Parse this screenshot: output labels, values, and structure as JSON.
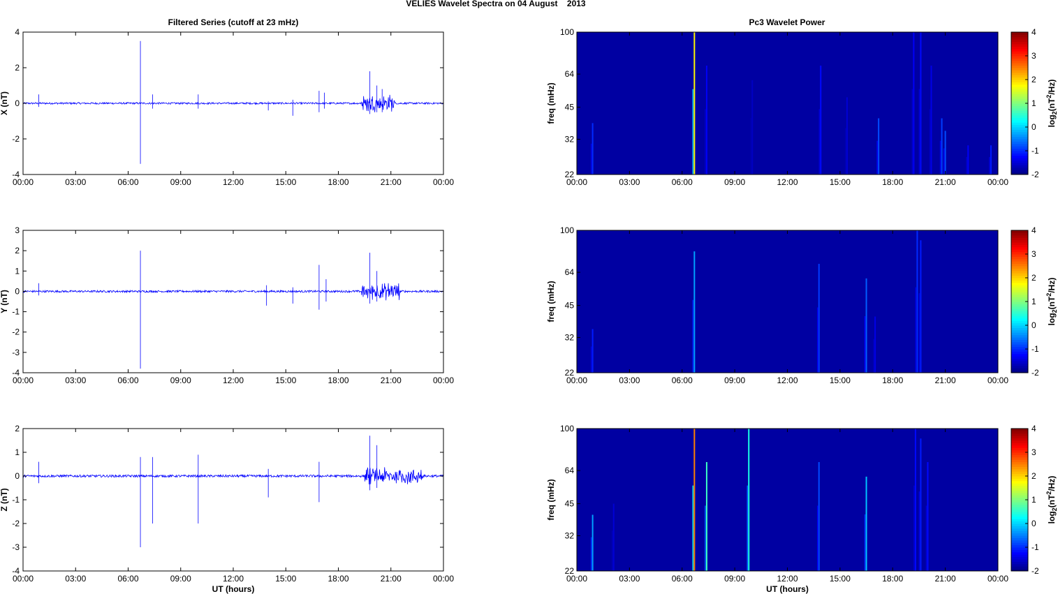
{
  "figure_title": "VELIES Wavelet Spectra on 04 August    2013",
  "left_title": "Filtered Series (cutoff at 23 mHz)",
  "right_title": "Pc3 Wavelet Power",
  "colors": {
    "trace": "#0000ff",
    "frame": "#000000",
    "background": "#ffffff"
  },
  "chart_data": [
    {
      "type": "line",
      "title": "Filtered Series (cutoff at 23 mHz)",
      "ylabel": "X (nT)",
      "xlabel": "",
      "xlim_hours": [
        0,
        24
      ],
      "ylim": [
        -4,
        4
      ],
      "yticks": [
        -4,
        -2,
        0,
        2,
        4
      ],
      "xtick_labels": [
        "00:00",
        "03:00",
        "06:00",
        "09:00",
        "12:00",
        "15:00",
        "18:00",
        "21:00",
        "00:00"
      ],
      "noise_amplitude": 0.05,
      "spikes": [
        [
          0.9,
          0.5,
          -0.2
        ],
        [
          6.7,
          3.5,
          -3.4
        ],
        [
          7.4,
          0.5,
          -0.3
        ],
        [
          10.0,
          0.5,
          -0.3
        ],
        [
          14.0,
          0.1,
          -0.4
        ],
        [
          15.4,
          0.2,
          -0.7
        ],
        [
          16.9,
          0.7,
          -0.5
        ],
        [
          17.2,
          0.6,
          -0.3
        ],
        [
          19.8,
          1.8,
          -0.6
        ],
        [
          20.2,
          1.0,
          -0.5
        ],
        [
          20.5,
          0.8,
          -0.5
        ]
      ],
      "activity_hours": [
        19.3,
        21.2
      ],
      "activity_amplitude": 0.6
    },
    {
      "type": "line",
      "ylabel": "Y (nT)",
      "xlabel": "",
      "xlim_hours": [
        0,
        24
      ],
      "ylim": [
        -4,
        3
      ],
      "yticks": [
        -4,
        -3,
        -2,
        -1,
        0,
        1,
        2,
        3
      ],
      "xtick_labels": [
        "00:00",
        "03:00",
        "06:00",
        "09:00",
        "12:00",
        "15:00",
        "18:00",
        "21:00",
        "00:00"
      ],
      "noise_amplitude": 0.05,
      "spikes": [
        [
          0.9,
          0.4,
          -0.2
        ],
        [
          6.7,
          2.0,
          -3.8
        ],
        [
          13.9,
          0.3,
          -0.7
        ],
        [
          15.4,
          0.2,
          -0.6
        ],
        [
          16.9,
          1.3,
          -0.9
        ],
        [
          17.3,
          0.6,
          -0.5
        ],
        [
          19.8,
          1.9,
          -0.6
        ],
        [
          20.2,
          1.0,
          -0.5
        ]
      ],
      "activity_hours": [
        19.3,
        21.5
      ],
      "activity_amplitude": 0.5
    },
    {
      "type": "line",
      "ylabel": "Z (nT)",
      "xlabel": "UT (hours)",
      "xlim_hours": [
        0,
        24
      ],
      "ylim": [
        -4,
        2
      ],
      "yticks": [
        -4,
        -3,
        -2,
        -1,
        0,
        1,
        2
      ],
      "xtick_labels": [
        "00:00",
        "03:00",
        "06:00",
        "09:00",
        "12:00",
        "15:00",
        "18:00",
        "21:00",
        "00:00"
      ],
      "noise_amplitude": 0.05,
      "spikes": [
        [
          0.9,
          0.6,
          -0.3
        ],
        [
          6.7,
          0.8,
          -3.0
        ],
        [
          7.4,
          0.8,
          -2.0
        ],
        [
          10.0,
          0.9,
          -2.0
        ],
        [
          14.0,
          0.3,
          -0.9
        ],
        [
          16.9,
          0.6,
          -1.1
        ],
        [
          19.8,
          1.7,
          -0.6
        ],
        [
          20.2,
          1.3,
          -0.5
        ]
      ],
      "activity_hours": [
        19.5,
        22.8
      ],
      "activity_amplitude": 0.4
    },
    {
      "type": "heatmap",
      "title": "Pc3 Wavelet Power",
      "ylabel": "freq (mHz)",
      "xlabel": "",
      "xlim_hours": [
        0,
        24
      ],
      "ylim_mhz": [
        22,
        100
      ],
      "yscale": "log",
      "yticks": [
        22,
        32,
        45,
        64,
        100
      ],
      "xtick_labels": [
        "00:00",
        "03:00",
        "06:00",
        "09:00",
        "12:00",
        "15:00",
        "18:00",
        "21:00",
        "00:00"
      ],
      "colorbar_label": "log2(nT2/Hz)",
      "clim": [
        -2,
        4
      ],
      "colorbar_ticks": [
        -2,
        -1,
        0,
        1,
        2,
        3,
        4
      ],
      "background_level": -1.8,
      "streaks": [
        [
          0.9,
          38,
          -1.0
        ],
        [
          6.7,
          100,
          1.8
        ],
        [
          7.4,
          70,
          -1.3
        ],
        [
          10.0,
          60,
          -1.6
        ],
        [
          13.9,
          70,
          -1.2
        ],
        [
          15.4,
          50,
          -1.5
        ],
        [
          17.2,
          40,
          -0.8
        ],
        [
          19.2,
          100,
          -1.3
        ],
        [
          19.6,
          100,
          -1.2
        ],
        [
          20.2,
          70,
          -1.4
        ],
        [
          20.8,
          40,
          -0.9
        ],
        [
          21.0,
          35,
          -0.8
        ],
        [
          22.3,
          30,
          -1.3
        ],
        [
          23.6,
          30,
          -1.1
        ]
      ]
    },
    {
      "type": "heatmap",
      "ylabel": "freq (mHz)",
      "xlabel": "",
      "xlim_hours": [
        0,
        24
      ],
      "ylim_mhz": [
        22,
        100
      ],
      "yscale": "log",
      "yticks": [
        22,
        32,
        45,
        64,
        100
      ],
      "xtick_labels": [
        "00:00",
        "03:00",
        "06:00",
        "09:00",
        "12:00",
        "15:00",
        "18:00",
        "21:00",
        "00:00"
      ],
      "colorbar_label": "log2(nT2/Hz)",
      "clim": [
        -2,
        4
      ],
      "colorbar_ticks": [
        -2,
        -1,
        0,
        1,
        2,
        3,
        4
      ],
      "background_level": -1.8,
      "streaks": [
        [
          0.9,
          35,
          -1.1
        ],
        [
          6.7,
          80,
          -0.3
        ],
        [
          13.8,
          70,
          -0.9
        ],
        [
          16.5,
          60,
          -0.7
        ],
        [
          17.0,
          40,
          -1.4
        ],
        [
          19.4,
          100,
          -1.0
        ],
        [
          19.6,
          90,
          -1.1
        ]
      ]
    },
    {
      "type": "heatmap",
      "ylabel": "freq (mHz)",
      "xlabel": "UT (hours)",
      "xlim_hours": [
        0,
        24
      ],
      "ylim_mhz": [
        22,
        100
      ],
      "yscale": "log",
      "yticks": [
        22,
        32,
        45,
        64,
        100
      ],
      "xtick_labels": [
        "00:00",
        "03:00",
        "06:00",
        "09:00",
        "12:00",
        "15:00",
        "18:00",
        "21:00",
        "00:00"
      ],
      "colorbar_label": "log2(nT2/Hz)",
      "clim": [
        -2,
        4
      ],
      "colorbar_ticks": [
        -2,
        -1,
        0,
        1,
        2,
        3,
        4
      ],
      "background_level": -1.8,
      "streaks": [
        [
          0.9,
          40,
          -0.3
        ],
        [
          2.1,
          45,
          -1.5
        ],
        [
          6.7,
          100,
          2.5
        ],
        [
          7.4,
          70,
          0.6
        ],
        [
          9.8,
          100,
          0.4
        ],
        [
          13.8,
          70,
          -0.8
        ],
        [
          16.5,
          60,
          -0.1
        ],
        [
          19.3,
          100,
          -1.2
        ],
        [
          19.6,
          90,
          -1.1
        ],
        [
          20.0,
          70,
          -1.2
        ]
      ]
    }
  ]
}
